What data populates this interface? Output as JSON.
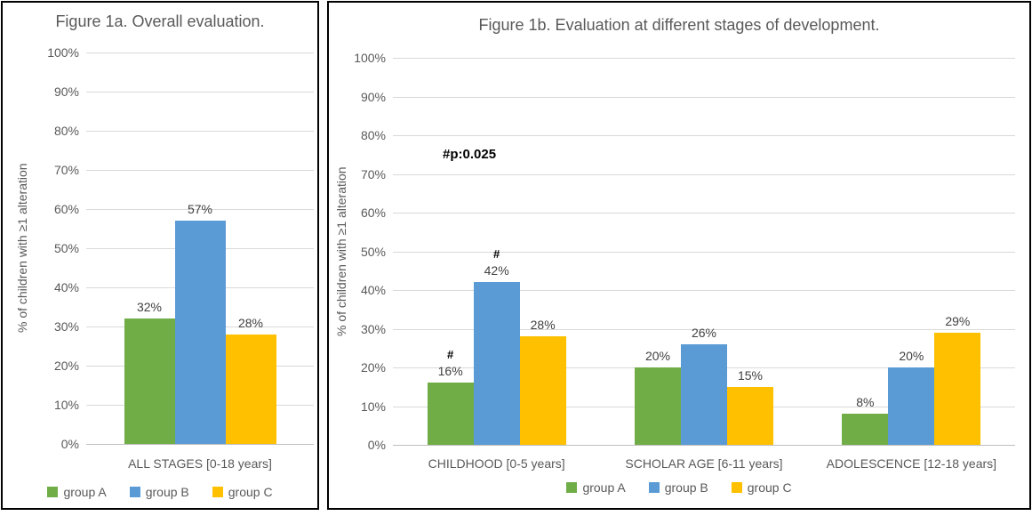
{
  "figure": {
    "border_color": "#000000",
    "background": "#FFFFFF"
  },
  "grid_color": "#D9D9D9",
  "text_colors": {
    "axis": "#595959",
    "data_label": "#404040",
    "significance": "#000000"
  },
  "chart_data": [
    {
      "type": "bar",
      "title": "Figure 1a. Overall evaluation.",
      "ylabel": "% of children with ≥1 alteration",
      "ylim": [
        0,
        100
      ],
      "ytick_step": 10,
      "ytick_suffix": "%",
      "grid": true,
      "legend_position": "bottom",
      "categories": [
        "ALL STAGES [0-18 years]"
      ],
      "series": [
        {
          "name": "group A",
          "color": "#70AD47",
          "values": [
            32
          ],
          "marks": [
            ""
          ]
        },
        {
          "name": "group B",
          "color": "#5B9BD5",
          "values": [
            57
          ],
          "marks": [
            ""
          ]
        },
        {
          "name": "group C",
          "color": "#FFC000",
          "values": [
            28
          ],
          "marks": [
            ""
          ]
        }
      ],
      "annotation": ""
    },
    {
      "type": "bar",
      "title": "Figure 1b. Evaluation at different stages of development.",
      "ylabel": "% of children with ≥1 alteration",
      "ylim": [
        0,
        100
      ],
      "ytick_step": 10,
      "ytick_suffix": "%",
      "grid": true,
      "legend_position": "bottom",
      "categories": [
        "CHILDHOOD [0-5 years]",
        "SCHOLAR AGE [6-11 years]",
        "ADOLESCENCE [12-18 years]"
      ],
      "series": [
        {
          "name": "group A",
          "color": "#70AD47",
          "values": [
            16,
            20,
            8
          ],
          "marks": [
            "#",
            "",
            ""
          ]
        },
        {
          "name": "group B",
          "color": "#5B9BD5",
          "values": [
            42,
            26,
            20
          ],
          "marks": [
            "#",
            "",
            ""
          ]
        },
        {
          "name": "group C",
          "color": "#FFC000",
          "values": [
            28,
            15,
            29
          ],
          "marks": [
            "",
            "",
            ""
          ]
        }
      ],
      "annotation": "#p:0.025"
    }
  ]
}
